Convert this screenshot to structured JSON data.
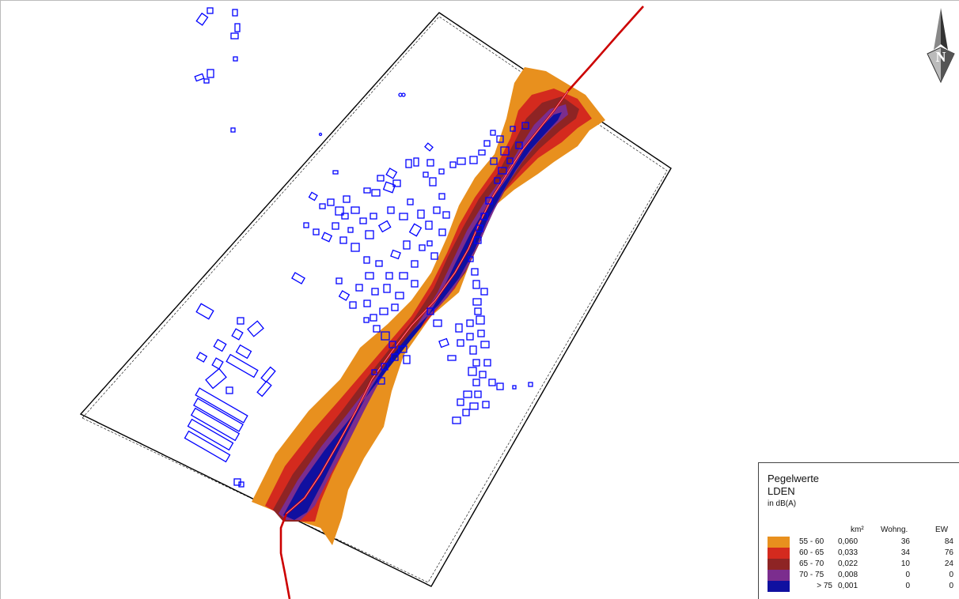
{
  "legend": {
    "title": "Pegelwerte",
    "metric": "LDEN",
    "unit": "in dB(A)",
    "col_area": "km²",
    "col_dwellings": "Wohng.",
    "col_residents": "EW",
    "rows": [
      {
        "range": "55 - 60",
        "area": "0,060",
        "dwellings": "36",
        "residents": "84",
        "color": "#E8901E"
      },
      {
        "range": "60 - 65",
        "area": "0,033",
        "dwellings": "34",
        "residents": "76",
        "color": "#D42A1E"
      },
      {
        "range": "65 - 70",
        "area": "0,022",
        "dwellings": "10",
        "residents": "24",
        "color": "#8E2424"
      },
      {
        "range": "70 - 75",
        "area": "0,008",
        "dwellings": "0",
        "residents": "0",
        "color": "#7B2D8E"
      },
      {
        "range": "> 75",
        "area": "0,001",
        "dwellings": "0",
        "residents": "0",
        "color": "#1010A0"
      }
    ]
  },
  "map": {
    "road_color": "#CC0000",
    "building_outline_color": "#0000FF",
    "calculation_area_outline_color": "#000000",
    "north_arrow_label": "N"
  }
}
